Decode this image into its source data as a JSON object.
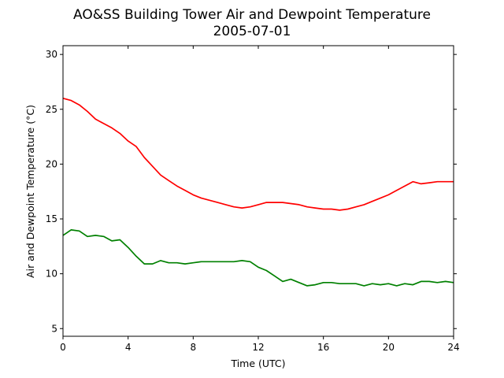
{
  "chart_data": {
    "type": "line",
    "title": "AO&SS Building Tower Air and Dewpoint Temperature",
    "subtitle": "2005-07-01",
    "xlabel": "Time (UTC)",
    "ylabel": "Air and Dewpoint Temperature (°C)",
    "xlim": [
      0,
      24
    ],
    "ylim": [
      4.3,
      30.8
    ],
    "xticks": [
      0,
      4,
      8,
      12,
      16,
      20,
      24
    ],
    "yticks": [
      5,
      10,
      15,
      20,
      25,
      30
    ],
    "grid": false,
    "series": [
      {
        "color": "#ff0000",
        "x": [
          0,
          0.5,
          1,
          1.5,
          2,
          2.5,
          3,
          3.5,
          4,
          4.5,
          5,
          5.5,
          6,
          6.5,
          7,
          7.5,
          8,
          8.5,
          9,
          9.5,
          10,
          10.5,
          11,
          11.5,
          12,
          12.5,
          13,
          13.5,
          14,
          14.5,
          15,
          15.5,
          16,
          16.5,
          17,
          17.5,
          18,
          18.5,
          19,
          19.5,
          20,
          20.5,
          21,
          21.5,
          22,
          22.5,
          23,
          23.5,
          24
        ],
        "y": [
          26.0,
          25.8,
          25.4,
          24.8,
          24.1,
          23.7,
          23.3,
          22.8,
          22.1,
          21.6,
          20.6,
          19.8,
          19.0,
          18.5,
          18.0,
          17.6,
          17.2,
          16.9,
          16.7,
          16.5,
          16.3,
          16.1,
          16.0,
          16.1,
          16.3,
          16.5,
          16.5,
          16.5,
          16.4,
          16.3,
          16.1,
          16.0,
          15.9,
          15.9,
          15.8,
          15.9,
          16.1,
          16.3,
          16.6,
          16.9,
          17.2,
          17.6,
          18.0,
          18.4,
          18.2,
          18.3,
          18.4,
          18.4,
          18.4
        ]
      },
      {
        "color": "#008000",
        "x": [
          0,
          0.5,
          1,
          1.5,
          2,
          2.5,
          3,
          3.5,
          4,
          4.5,
          5,
          5.5,
          6,
          6.5,
          7,
          7.5,
          8,
          8.5,
          9,
          9.5,
          10,
          10.5,
          11,
          11.5,
          12,
          12.5,
          13,
          13.5,
          14,
          14.5,
          15,
          15.5,
          16,
          16.5,
          17,
          17.5,
          18,
          18.5,
          19,
          19.5,
          20,
          20.5,
          21,
          21.5,
          22,
          22.5,
          23,
          23.5,
          24
        ],
        "y": [
          13.5,
          14.0,
          13.9,
          13.4,
          13.5,
          13.4,
          13.0,
          13.1,
          12.4,
          11.6,
          10.9,
          10.9,
          11.2,
          11.0,
          11.0,
          10.9,
          11.0,
          11.1,
          11.1,
          11.1,
          11.1,
          11.1,
          11.2,
          11.1,
          10.6,
          10.3,
          9.8,
          9.3,
          9.5,
          9.2,
          8.9,
          9.0,
          9.2,
          9.2,
          9.1,
          9.1,
          9.1,
          8.9,
          9.1,
          9.0,
          9.1,
          8.9,
          9.1,
          9.0,
          9.3,
          9.3,
          9.2,
          9.3,
          9.2
        ]
      }
    ]
  }
}
